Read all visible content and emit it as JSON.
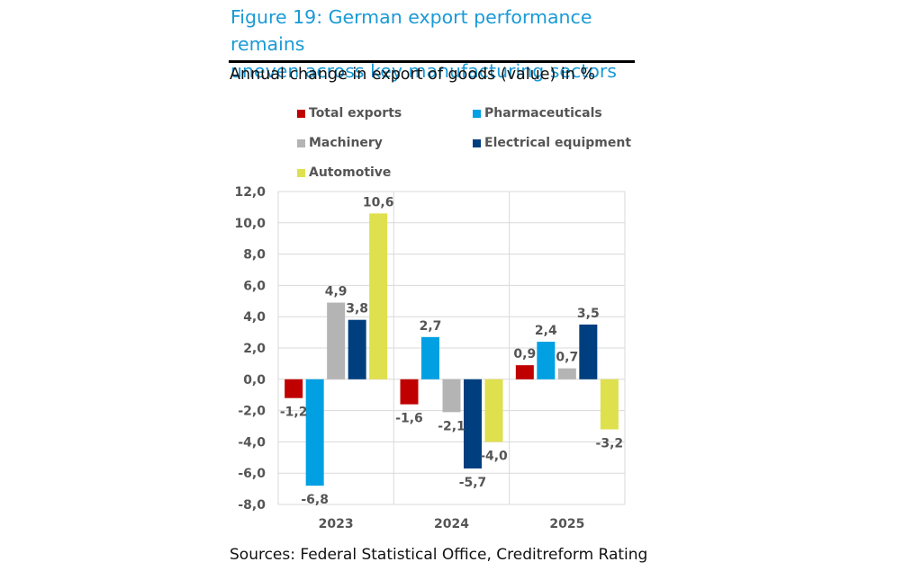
{
  "header": {
    "title_line1": "Figure 19: German export performance remains",
    "title_line2": "uneven across key manufacturing sectors",
    "subtitle": "Annual change in export of goods (value) in %"
  },
  "footer": {
    "source": "Sources: Federal Statistical Office, Creditreform Rating"
  },
  "colors": {
    "title": "#1a9ad6",
    "total_exports": "#c00000",
    "pharmaceuticals": "#00a0e3",
    "machinery": "#b4b4b4",
    "electrical_equipment": "#003f7f",
    "automotive": "#dfe04d"
  },
  "chart_data": {
    "type": "bar",
    "title": "Figure 19: German export performance remains uneven across key manufacturing sectors",
    "subtitle": "Annual change in export of goods (value) in %",
    "xlabel": "",
    "ylabel": "",
    "categories": [
      "2023",
      "2024",
      "2025"
    ],
    "ylim": [
      -8.0,
      12.0
    ],
    "yticks": [
      12.0,
      10.0,
      8.0,
      6.0,
      4.0,
      2.0,
      0.0,
      -2.0,
      -4.0,
      -6.0,
      -8.0
    ],
    "ytick_labels": [
      "12,0",
      "10,0",
      "8,0",
      "6,0",
      "4,0",
      "2,0",
      "0,0",
      "-2,0",
      "-4,0",
      "-6,0",
      "-8,0"
    ],
    "grid": true,
    "legend_position": "top",
    "series": [
      {
        "name": "Total exports",
        "color": "#c00000",
        "values": [
          -1.2,
          -1.6,
          0.9
        ],
        "labels": [
          "-1,2",
          "-1,6",
          "0,9"
        ]
      },
      {
        "name": "Pharmaceuticals",
        "color": "#00a0e3",
        "values": [
          -6.8,
          2.7,
          2.4
        ],
        "labels": [
          "-6,8",
          "2,7",
          "2,4"
        ]
      },
      {
        "name": "Machinery",
        "color": "#b4b4b4",
        "values": [
          4.9,
          -2.1,
          0.7
        ],
        "labels": [
          "4,9",
          "-2,1",
          "0,7"
        ]
      },
      {
        "name": "Electrical equipment",
        "color": "#003f7f",
        "values": [
          3.8,
          -5.7,
          3.5
        ],
        "labels": [
          "3,8",
          "-5,7",
          "3,5"
        ]
      },
      {
        "name": "Automotive",
        "color": "#dfe04d",
        "values": [
          10.6,
          -4.0,
          -3.2
        ],
        "labels": [
          "10,6",
          "-4,0",
          "-3,2"
        ]
      }
    ]
  }
}
